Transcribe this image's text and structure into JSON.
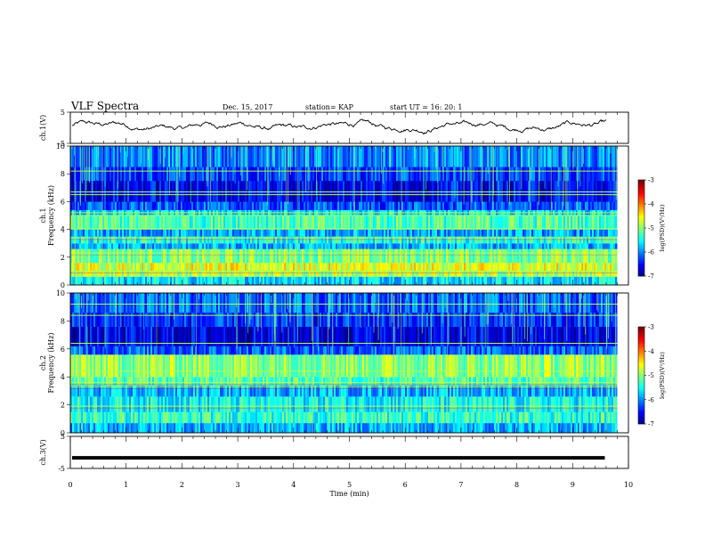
{
  "header": {
    "title": "VLF Spectra",
    "date": "Dec. 15, 2017",
    "station": "station= KAP",
    "start": "start UT = 16: 20: 1"
  },
  "chart_data": {
    "type": "heatmap",
    "panels": [
      {
        "kind": "waveform",
        "ylabel": "ch.1(V)",
        "ylim": [
          -5,
          5
        ],
        "yticks": [
          "5",
          "-5"
        ],
        "mean": 0.5,
        "amplitude": 1.3
      },
      {
        "kind": "spectrogram",
        "ylabel": "Frequency (kHz)",
        "chlabel": "ch.1",
        "ylim": [
          0,
          10
        ],
        "yticks": [
          "0",
          "2",
          "4",
          "6",
          "8",
          "10"
        ],
        "colorbar": {
          "label": "log(PSD)(V²/Hz)",
          "range": [
            -7,
            -3
          ],
          "ticks": [
            "-3",
            "-4",
            "-5",
            "-6",
            "-7"
          ]
        },
        "bands": [
          {
            "f0": 0.0,
            "f1": 0.6,
            "level": 0.35
          },
          {
            "f0": 0.6,
            "f1": 1.0,
            "level": 0.55
          },
          {
            "f0": 1.0,
            "f1": 1.6,
            "level": 0.6
          },
          {
            "f0": 1.6,
            "f1": 2.6,
            "level": 0.5
          },
          {
            "f0": 2.6,
            "f1": 3.0,
            "level": 0.3
          },
          {
            "f0": 3.0,
            "f1": 3.5,
            "level": 0.4
          },
          {
            "f0": 3.5,
            "f1": 4.0,
            "level": 0.28
          },
          {
            "f0": 4.0,
            "f1": 5.0,
            "level": 0.45
          },
          {
            "f0": 5.0,
            "f1": 5.4,
            "level": 0.35
          },
          {
            "f0": 5.4,
            "f1": 6.0,
            "level": 0.2
          },
          {
            "f0": 6.0,
            "f1": 7.5,
            "level": 0.12
          },
          {
            "f0": 7.5,
            "f1": 8.5,
            "level": 0.18
          },
          {
            "f0": 8.5,
            "f1": 10.0,
            "level": 0.25
          }
        ],
        "lines_khz": [
          1.0,
          2.3,
          3.4,
          4.05,
          5.0,
          5.2,
          6.5,
          6.7,
          8.2
        ]
      },
      {
        "kind": "spectrogram",
        "ylabel": "Frequency (kHz)",
        "chlabel": "ch.2",
        "ylim": [
          0,
          10
        ],
        "yticks": [
          "0",
          "2",
          "4",
          "6",
          "8",
          "10"
        ],
        "colorbar": {
          "label": "log(PSD)(V²/Hz)",
          "range": [
            -7,
            -3
          ],
          "ticks": [
            "-3",
            "-4",
            "-5",
            "-6",
            "-7"
          ]
        },
        "bands": [
          {
            "f0": 0.0,
            "f1": 0.7,
            "level": 0.3
          },
          {
            "f0": 0.7,
            "f1": 1.5,
            "level": 0.42
          },
          {
            "f0": 1.5,
            "f1": 2.6,
            "level": 0.38
          },
          {
            "f0": 2.6,
            "f1": 3.4,
            "level": 0.3
          },
          {
            "f0": 3.4,
            "f1": 4.0,
            "level": 0.45
          },
          {
            "f0": 4.0,
            "f1": 5.6,
            "level": 0.52
          },
          {
            "f0": 5.6,
            "f1": 6.2,
            "level": 0.22
          },
          {
            "f0": 6.2,
            "f1": 7.6,
            "level": 0.1
          },
          {
            "f0": 7.6,
            "f1": 8.6,
            "level": 0.16
          },
          {
            "f0": 8.6,
            "f1": 10.0,
            "level": 0.22
          }
        ],
        "lines_khz": [
          1.9,
          3.3,
          3.6,
          4.4,
          6.4,
          8.4,
          9.2
        ]
      },
      {
        "kind": "waveform",
        "ylabel": "ch.3(V)",
        "ylim": [
          -5,
          5
        ],
        "yticks": [
          "5",
          "-5"
        ],
        "mean": -1.7,
        "amplitude": 0.0
      }
    ],
    "x": {
      "label": "Time (min)",
      "range": [
        0,
        10
      ],
      "data_end": 9.8,
      "ticks": [
        "0",
        "1",
        "2",
        "3",
        "4",
        "5",
        "6",
        "7",
        "8",
        "9",
        "10"
      ]
    },
    "colors": {
      "ink": "#000000",
      "background": "#ffffff",
      "grid_line": "#a0e07a"
    }
  }
}
